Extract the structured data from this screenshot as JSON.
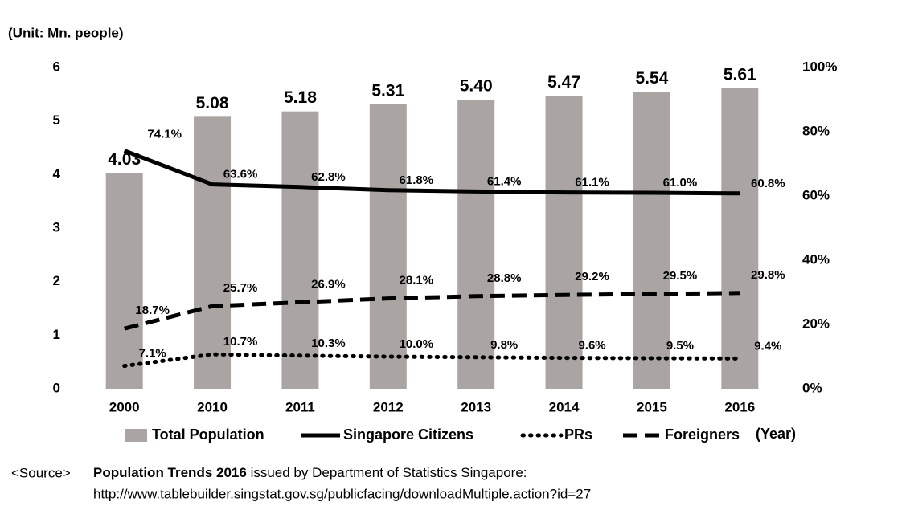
{
  "chart_data": {
    "type": "combo",
    "unit_label": "(Unit: Mn. people)",
    "x_label": "(Year)",
    "categories": [
      "2000",
      "2010",
      "2011",
      "2012",
      "2013",
      "2014",
      "2015",
      "2016"
    ],
    "ylim": [
      0,
      6
    ],
    "yticks": [
      0,
      1,
      2,
      3,
      4,
      5,
      6
    ],
    "y2lim": [
      0,
      100
    ],
    "y2ticks": [
      {
        "value": 0,
        "label": "0%"
      },
      {
        "value": 20,
        "label": "20%"
      },
      {
        "value": 40,
        "label": "40%"
      },
      {
        "value": 60,
        "label": "60%"
      },
      {
        "value": 80,
        "label": "80%"
      },
      {
        "value": 100,
        "label": "100%"
      }
    ],
    "series": [
      {
        "name": "Total Population",
        "type": "bar",
        "color": "#aaa5a3",
        "values": [
          4.03,
          5.08,
          5.18,
          5.31,
          5.4,
          5.47,
          5.54,
          5.61
        ],
        "value_labels": [
          "4.03",
          "5.08",
          "5.18",
          "5.31",
          "5.40",
          "5.47",
          "5.54",
          "5.61"
        ]
      },
      {
        "name": "Singapore Citizens",
        "type": "line",
        "dash": "solid",
        "axis": "y2",
        "color": "#000000",
        "values": [
          74.1,
          63.6,
          62.8,
          61.8,
          61.4,
          61.1,
          61.0,
          60.8
        ],
        "value_labels": [
          "74.1%",
          "63.6%",
          "62.8%",
          "61.8%",
          "61.4%",
          "61.1%",
          "61.0%",
          "60.8%"
        ]
      },
      {
        "name": "PRs",
        "type": "line",
        "dash": "dotted",
        "axis": "y2",
        "color": "#000000",
        "values": [
          7.1,
          10.7,
          10.3,
          10.0,
          9.8,
          9.6,
          9.5,
          9.4
        ],
        "value_labels": [
          "7.1%",
          "10.7%",
          "10.3%",
          "10.0%",
          "9.8%",
          "9.6%",
          "9.5%",
          "9.4%"
        ]
      },
      {
        "name": "Foreigners",
        "type": "line",
        "dash": "dashed",
        "axis": "y2",
        "color": "#000000",
        "values": [
          18.7,
          25.7,
          26.9,
          28.1,
          28.8,
          29.2,
          29.5,
          29.8
        ],
        "value_labels": [
          "18.7%",
          "25.7%",
          "26.9%",
          "28.1%",
          "28.8%",
          "29.2%",
          "29.5%",
          "29.8%"
        ]
      }
    ]
  },
  "source": {
    "prefix": "<Source>",
    "title": "Population Trends 2016",
    "text": "issued by Department of Statistics Singapore:",
    "url": "http://www.tablebuilder.singstat.gov.sg/publicfacing/downloadMultiple.action?id=27"
  }
}
